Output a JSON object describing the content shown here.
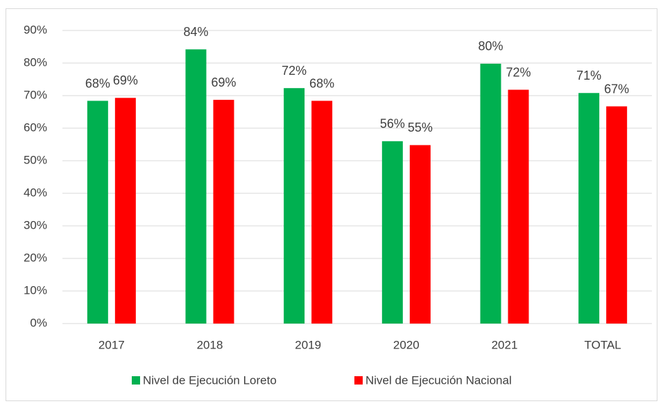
{
  "chart_data": {
    "type": "bar",
    "categories": [
      "2017",
      "2018",
      "2019",
      "2020",
      "2021",
      "TOTAL"
    ],
    "series": [
      {
        "name": "Nivel de Ejecución Loreto",
        "color": "#00b050",
        "values": [
          68.4,
          84.2,
          72.3,
          56.0,
          79.8,
          70.8
        ],
        "value_labels": [
          "68%",
          "84%",
          "72%",
          "56%",
          "80%",
          "71%"
        ]
      },
      {
        "name": "Nivel de Ejecución Nacional",
        "color": "#ff0000",
        "values": [
          69.3,
          68.7,
          68.4,
          54.8,
          71.8,
          66.7
        ],
        "value_labels": [
          "69%",
          "69%",
          "68%",
          "55%",
          "72%",
          "67%"
        ]
      }
    ],
    "ylim": [
      0,
      90
    ],
    "yticks": [
      {
        "value": 0,
        "label": "0%"
      },
      {
        "value": 10,
        "label": "10%"
      },
      {
        "value": 20,
        "label": "20%"
      },
      {
        "value": 30,
        "label": "30%"
      },
      {
        "value": 40,
        "label": "40%"
      },
      {
        "value": 50,
        "label": "50%"
      },
      {
        "value": 60,
        "label": "60%"
      },
      {
        "value": 70,
        "label": "70%"
      },
      {
        "value": 80,
        "label": "80%"
      },
      {
        "value": 90,
        "label": "90%"
      }
    ],
    "grid": true,
    "legend": "bottom"
  }
}
